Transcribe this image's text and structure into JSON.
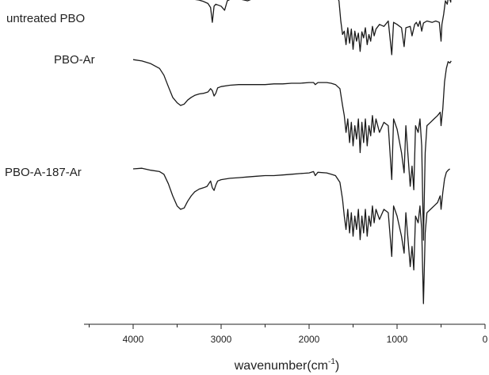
{
  "chart_data": {
    "type": "line",
    "title": "",
    "xlabel": "wavenumber(cm",
    "xlabel_sup": "-1",
    "xlabel_close": ")",
    "ylabel": "",
    "xlim": [
      4500,
      0
    ],
    "x_reversed": true,
    "ticks": [
      "4000",
      "3000",
      "2000",
      "1000",
      "0"
    ],
    "tick_values": [
      4000,
      3000,
      2000,
      1000,
      0
    ],
    "grid": false,
    "y_axis_shown": false,
    "series": [
      {
        "name": "untreated PBO",
        "color": "#1a1a1a",
        "points": [
          [
            4000,
            97
          ],
          [
            3900,
            98
          ],
          [
            3800,
            95
          ],
          [
            3750,
            93
          ],
          [
            3700,
            94
          ],
          [
            3640,
            92
          ],
          [
            3600,
            88
          ],
          [
            3560,
            80
          ],
          [
            3500,
            74
          ],
          [
            3450,
            72
          ],
          [
            3400,
            68
          ],
          [
            3350,
            65
          ],
          [
            3300,
            62
          ],
          [
            3250,
            61
          ],
          [
            3200,
            59
          ],
          [
            3150,
            56
          ],
          [
            3120,
            50
          ],
          [
            3100,
            28
          ],
          [
            3090,
            40
          ],
          [
            3080,
            52
          ],
          [
            3060,
            55
          ],
          [
            3000,
            52
          ],
          [
            2960,
            46
          ],
          [
            2930,
            60
          ],
          [
            2900,
            62
          ],
          [
            2800,
            63
          ],
          [
            2700,
            60
          ],
          [
            2600,
            65
          ],
          [
            2500,
            66
          ],
          [
            2400,
            67
          ],
          [
            2300,
            70
          ],
          [
            2200,
            72
          ],
          [
            2100,
            74
          ],
          [
            2000,
            76
          ],
          [
            1950,
            78
          ],
          [
            1930,
            72
          ],
          [
            1900,
            76
          ],
          [
            1800,
            74
          ],
          [
            1750,
            73
          ],
          [
            1700,
            70
          ],
          [
            1660,
            60
          ],
          [
            1640,
            30
          ],
          [
            1620,
            10
          ],
          [
            1600,
            15
          ],
          [
            1580,
            -5
          ],
          [
            1560,
            20
          ],
          [
            1540,
            -3
          ],
          [
            1520,
            18
          ],
          [
            1500,
            -12
          ],
          [
            1480,
            15
          ],
          [
            1460,
            0
          ],
          [
            1440,
            12
          ],
          [
            1420,
            -15
          ],
          [
            1400,
            14
          ],
          [
            1380,
            5
          ],
          [
            1360,
            20
          ],
          [
            1340,
            -5
          ],
          [
            1320,
            10
          ],
          [
            1300,
            0
          ],
          [
            1280,
            22
          ],
          [
            1260,
            8
          ],
          [
            1240,
            18
          ],
          [
            1200,
            25
          ],
          [
            1150,
            22
          ],
          [
            1100,
            30
          ],
          [
            1060,
            -20
          ],
          [
            1040,
            28
          ],
          [
            1000,
            25
          ],
          [
            950,
            20
          ],
          [
            920,
            -8
          ],
          [
            900,
            20
          ],
          [
            850,
            22
          ],
          [
            830,
            8
          ],
          [
            800,
            25
          ],
          [
            780,
            28
          ],
          [
            760,
            22
          ],
          [
            740,
            30
          ],
          [
            720,
            15
          ],
          [
            700,
            27
          ],
          [
            660,
            30
          ],
          [
            600,
            28
          ],
          [
            560,
            30
          ],
          [
            520,
            28
          ],
          [
            500,
            0
          ],
          [
            490,
            25
          ],
          [
            470,
            40
          ],
          [
            450,
            60
          ],
          [
            430,
            55
          ],
          [
            410,
            70
          ],
          [
            400,
            62
          ],
          [
            390,
            58
          ],
          [
            380,
            100
          ]
        ]
      },
      {
        "name": "PBO-Ar",
        "color": "#1a1a1a",
        "points": [
          [
            4000,
            68
          ],
          [
            3900,
            66
          ],
          [
            3800,
            62
          ],
          [
            3700,
            55
          ],
          [
            3650,
            45
          ],
          [
            3600,
            28
          ],
          [
            3550,
            12
          ],
          [
            3500,
            4
          ],
          [
            3460,
            0
          ],
          [
            3420,
            2
          ],
          [
            3380,
            8
          ],
          [
            3340,
            12
          ],
          [
            3300,
            15
          ],
          [
            3250,
            17
          ],
          [
            3200,
            18
          ],
          [
            3150,
            20
          ],
          [
            3120,
            25
          ],
          [
            3100,
            22
          ],
          [
            3080,
            14
          ],
          [
            3060,
            18
          ],
          [
            3040,
            26
          ],
          [
            3000,
            28
          ],
          [
            2900,
            30
          ],
          [
            2800,
            31
          ],
          [
            2700,
            31
          ],
          [
            2600,
            31
          ],
          [
            2500,
            31
          ],
          [
            2400,
            32
          ],
          [
            2300,
            32
          ],
          [
            2200,
            33
          ],
          [
            2100,
            33
          ],
          [
            2000,
            34
          ],
          [
            1950,
            34
          ],
          [
            1930,
            31
          ],
          [
            1900,
            34
          ],
          [
            1800,
            34
          ],
          [
            1750,
            33
          ],
          [
            1700,
            31
          ],
          [
            1650,
            25
          ],
          [
            1620,
            0
          ],
          [
            1600,
            -15
          ],
          [
            1580,
            -40
          ],
          [
            1560,
            -20
          ],
          [
            1540,
            -55
          ],
          [
            1520,
            -25
          ],
          [
            1500,
            -60
          ],
          [
            1480,
            -30
          ],
          [
            1460,
            -50
          ],
          [
            1440,
            -20
          ],
          [
            1420,
            -70
          ],
          [
            1400,
            -25
          ],
          [
            1380,
            -55
          ],
          [
            1360,
            -20
          ],
          [
            1340,
            -60
          ],
          [
            1320,
            -30
          ],
          [
            1300,
            -45
          ],
          [
            1280,
            -15
          ],
          [
            1260,
            -40
          ],
          [
            1240,
            -20
          ],
          [
            1200,
            -40
          ],
          [
            1150,
            -25
          ],
          [
            1100,
            -30
          ],
          [
            1060,
            -110
          ],
          [
            1040,
            -20
          ],
          [
            1000,
            -35
          ],
          [
            950,
            -70
          ],
          [
            920,
            -100
          ],
          [
            900,
            -30
          ],
          [
            850,
            -120
          ],
          [
            830,
            -90
          ],
          [
            810,
            -125
          ],
          [
            790,
            -30
          ],
          [
            760,
            -40
          ],
          [
            740,
            -20
          ],
          [
            720,
            -60
          ],
          [
            700,
            -200
          ],
          [
            680,
            -70
          ],
          [
            660,
            -30
          ],
          [
            620,
            -25
          ],
          [
            580,
            -20
          ],
          [
            540,
            -15
          ],
          [
            510,
            -10
          ],
          [
            500,
            -30
          ],
          [
            480,
            -5
          ],
          [
            460,
            35
          ],
          [
            440,
            55
          ],
          [
            420,
            65
          ],
          [
            400,
            63
          ],
          [
            385,
            66
          ]
        ]
      },
      {
        "name": "PBO-A-187-Ar",
        "color": "#1a1a1a",
        "points": [
          [
            4000,
            0
          ],
          [
            3900,
            1
          ],
          [
            3800,
            -2
          ],
          [
            3700,
            -4
          ],
          [
            3650,
            -8
          ],
          [
            3600,
            -22
          ],
          [
            3550,
            -40
          ],
          [
            3500,
            -55
          ],
          [
            3460,
            -60
          ],
          [
            3420,
            -58
          ],
          [
            3380,
            -48
          ],
          [
            3340,
            -40
          ],
          [
            3300,
            -34
          ],
          [
            3250,
            -30
          ],
          [
            3200,
            -28
          ],
          [
            3160,
            -26
          ],
          [
            3120,
            -18
          ],
          [
            3100,
            -28
          ],
          [
            3080,
            -32
          ],
          [
            3060,
            -24
          ],
          [
            3040,
            -18
          ],
          [
            3000,
            -16
          ],
          [
            2900,
            -14
          ],
          [
            2800,
            -13
          ],
          [
            2700,
            -12
          ],
          [
            2600,
            -11
          ],
          [
            2500,
            -10
          ],
          [
            2400,
            -10
          ],
          [
            2300,
            -9
          ],
          [
            2200,
            -8
          ],
          [
            2100,
            -7
          ],
          [
            2000,
            -6
          ],
          [
            1950,
            -4
          ],
          [
            1930,
            -10
          ],
          [
            1900,
            -5
          ],
          [
            1800,
            -6
          ],
          [
            1750,
            -8
          ],
          [
            1700,
            -10
          ],
          [
            1650,
            -20
          ],
          [
            1620,
            -45
          ],
          [
            1600,
            -70
          ],
          [
            1580,
            -90
          ],
          [
            1560,
            -60
          ],
          [
            1540,
            -95
          ],
          [
            1520,
            -65
          ],
          [
            1500,
            -100
          ],
          [
            1480,
            -70
          ],
          [
            1460,
            -90
          ],
          [
            1440,
            -60
          ],
          [
            1420,
            -105
          ],
          [
            1400,
            -70
          ],
          [
            1380,
            -95
          ],
          [
            1360,
            -60
          ],
          [
            1340,
            -100
          ],
          [
            1320,
            -70
          ],
          [
            1300,
            -85
          ],
          [
            1280,
            -55
          ],
          [
            1260,
            -80
          ],
          [
            1240,
            -60
          ],
          [
            1200,
            -75
          ],
          [
            1150,
            -60
          ],
          [
            1100,
            -65
          ],
          [
            1060,
            -130
          ],
          [
            1040,
            -55
          ],
          [
            1000,
            -70
          ],
          [
            950,
            -100
          ],
          [
            920,
            -125
          ],
          [
            900,
            -65
          ],
          [
            850,
            -145
          ],
          [
            830,
            -115
          ],
          [
            810,
            -150
          ],
          [
            790,
            -70
          ],
          [
            760,
            -80
          ],
          [
            740,
            -55
          ],
          [
            720,
            -90
          ],
          [
            700,
            -200
          ],
          [
            680,
            -95
          ],
          [
            660,
            -65
          ],
          [
            620,
            -60
          ],
          [
            580,
            -55
          ],
          [
            540,
            -50
          ],
          [
            510,
            -40
          ],
          [
            500,
            -60
          ],
          [
            480,
            -35
          ],
          [
            460,
            -15
          ],
          [
            440,
            -5
          ],
          [
            420,
            -2
          ],
          [
            400,
            0
          ]
        ]
      }
    ]
  }
}
